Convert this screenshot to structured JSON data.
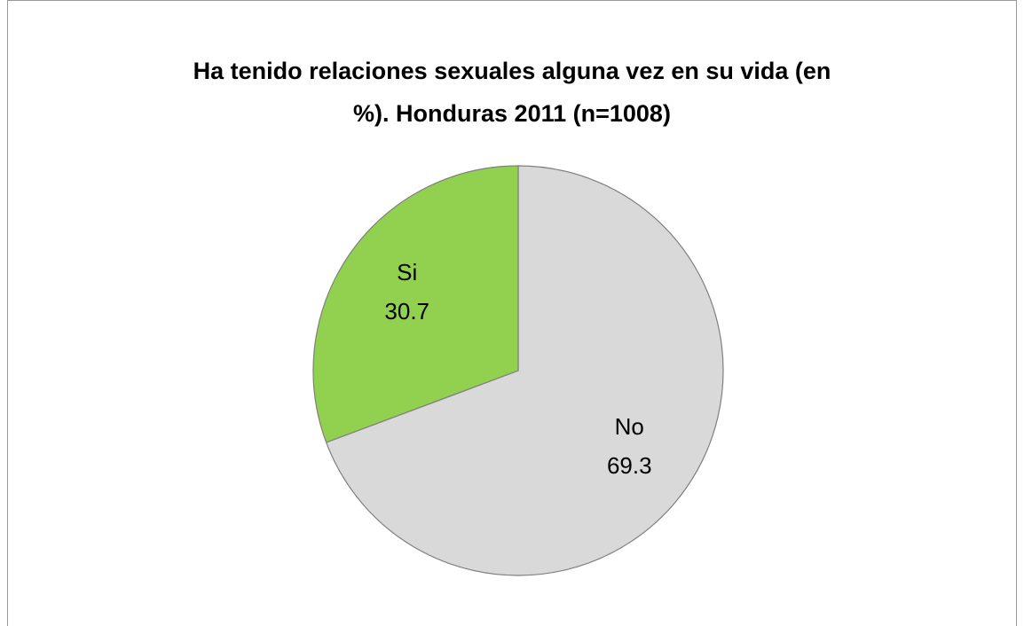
{
  "chart_data": {
    "type": "pie",
    "title_lines": [
      "Ha tenido relaciones sexuales alguna vez en su vida (en",
      "%). Honduras 2011 (n=1008)"
    ],
    "categories": [
      "No",
      "Si"
    ],
    "values": [
      69.3,
      30.7
    ],
    "colors": [
      "#d9d9d9",
      "#92d050"
    ]
  }
}
